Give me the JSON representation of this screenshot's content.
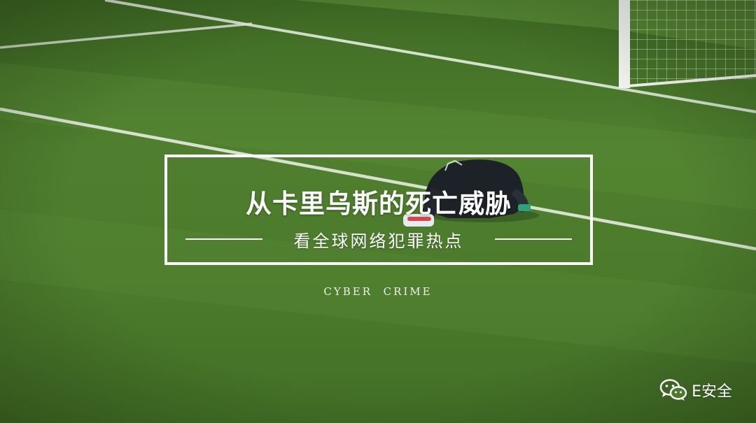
{
  "headline": "从卡里乌斯的死亡威胁",
  "subheadline": "看全球网络犯罪热点",
  "caption": "CYBER  CRIME",
  "watermark": {
    "icon": "wechat-icon",
    "account_name": "E安全"
  },
  "photo": {
    "subject": "goalkeeper-kneeling-on-pitch",
    "colors": {
      "grass_dark": "#3f6b22",
      "grass_light": "#5a8b34",
      "line": "#e9efe2",
      "kit": "#1d2228"
    }
  }
}
